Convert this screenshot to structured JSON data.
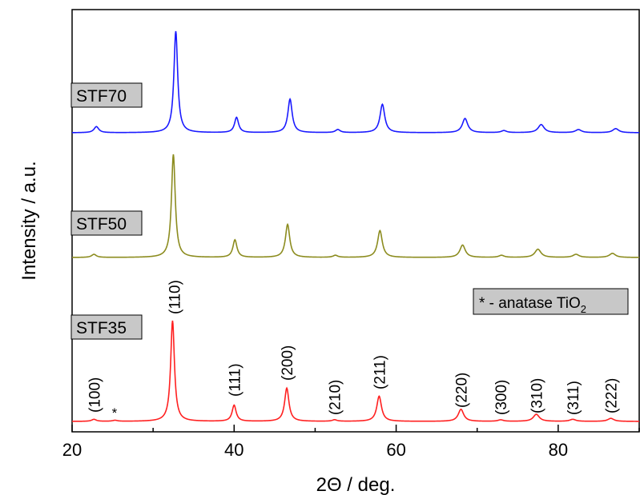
{
  "chart_data": {
    "type": "line",
    "xlabel": "2Θ / deg.",
    "ylabel": "Intensity / a.u.",
    "xlim": [
      20,
      90
    ],
    "xticks": [
      "20",
      "40",
      "60",
      "80"
    ],
    "y_ticks_shown": false,
    "legend_note": {
      "prefix": "* - anatase TiO",
      "subscript": "2"
    },
    "series": [
      {
        "name": "STF70",
        "color": "#1a1aff",
        "peaks": [
          {
            "x": 23.0,
            "h": 0.06,
            "w": 0.35
          },
          {
            "x": 32.8,
            "h": 1.0,
            "w": 0.28
          },
          {
            "x": 40.3,
            "h": 0.15,
            "w": 0.3
          },
          {
            "x": 46.9,
            "h": 0.33,
            "w": 0.32
          },
          {
            "x": 52.8,
            "h": 0.03,
            "w": 0.35
          },
          {
            "x": 58.3,
            "h": 0.28,
            "w": 0.35
          },
          {
            "x": 68.5,
            "h": 0.14,
            "w": 0.4
          },
          {
            "x": 73.3,
            "h": 0.02,
            "w": 0.4
          },
          {
            "x": 77.9,
            "h": 0.08,
            "w": 0.45
          },
          {
            "x": 82.5,
            "h": 0.03,
            "w": 0.45
          },
          {
            "x": 87.1,
            "h": 0.04,
            "w": 0.45
          }
        ]
      },
      {
        "name": "STF50",
        "color": "#8c8c1f",
        "peaks": [
          {
            "x": 22.7,
            "h": 0.03,
            "w": 0.35
          },
          {
            "x": 32.5,
            "h": 1.0,
            "w": 0.28
          },
          {
            "x": 40.1,
            "h": 0.17,
            "w": 0.3
          },
          {
            "x": 46.6,
            "h": 0.32,
            "w": 0.32
          },
          {
            "x": 52.5,
            "h": 0.02,
            "w": 0.35
          },
          {
            "x": 58.0,
            "h": 0.26,
            "w": 0.35
          },
          {
            "x": 68.2,
            "h": 0.12,
            "w": 0.4
          },
          {
            "x": 73.0,
            "h": 0.02,
            "w": 0.4
          },
          {
            "x": 77.5,
            "h": 0.08,
            "w": 0.45
          },
          {
            "x": 82.2,
            "h": 0.03,
            "w": 0.45
          },
          {
            "x": 86.7,
            "h": 0.04,
            "w": 0.45
          }
        ]
      },
      {
        "name": "STF35",
        "color": "#ff2020",
        "peaks": [
          {
            "x": 22.7,
            "h": 0.02,
            "w": 0.35
          },
          {
            "x": 25.3,
            "h": 0.01,
            "w": 0.35
          },
          {
            "x": 32.4,
            "h": 1.0,
            "w": 0.28
          },
          {
            "x": 40.0,
            "h": 0.16,
            "w": 0.3
          },
          {
            "x": 46.5,
            "h": 0.33,
            "w": 0.32
          },
          {
            "x": 52.4,
            "h": 0.015,
            "w": 0.35
          },
          {
            "x": 57.9,
            "h": 0.25,
            "w": 0.35
          },
          {
            "x": 68.0,
            "h": 0.12,
            "w": 0.4
          },
          {
            "x": 72.9,
            "h": 0.015,
            "w": 0.4
          },
          {
            "x": 77.3,
            "h": 0.07,
            "w": 0.45
          },
          {
            "x": 81.8,
            "h": 0.02,
            "w": 0.45
          },
          {
            "x": 86.5,
            "h": 0.03,
            "w": 0.45
          }
        ]
      }
    ],
    "annotations": [
      {
        "text": "(100)",
        "x": 22.7
      },
      {
        "text": "*",
        "x": 25.3
      },
      {
        "text": "(110)",
        "x": 32.4
      },
      {
        "text": "(111)",
        "x": 40.0
      },
      {
        "text": "(200)",
        "x": 46.5
      },
      {
        "text": "(210)",
        "x": 52.4
      },
      {
        "text": "(211)",
        "x": 57.9
      },
      {
        "text": "(220)",
        "x": 68.0
      },
      {
        "text": "(300)",
        "x": 72.9
      },
      {
        "text": "(310)",
        "x": 77.3
      },
      {
        "text": "(311)",
        "x": 81.8
      },
      {
        "text": "(222)",
        "x": 86.5
      }
    ]
  }
}
